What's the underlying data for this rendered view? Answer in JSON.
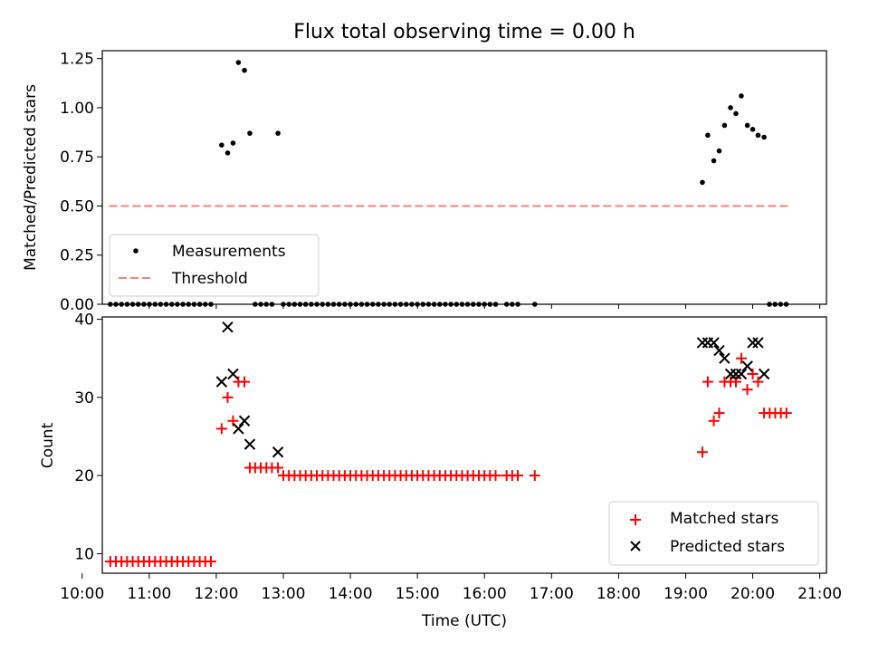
{
  "title": "Flux total observing time = 0.00 h",
  "colors": {
    "measurements": "#000000",
    "threshold": "#ff7f7f",
    "matched": "#ff0000",
    "predicted": "#000000"
  },
  "chart_data": [
    {
      "type": "scatter",
      "panel": "top",
      "ylabel": "Matched/Predicted stars",
      "xlim": [
        10.3,
        21.1
      ],
      "ylim": [
        0,
        1.29
      ],
      "y_ticks": [
        "0.00",
        "0.25",
        "0.50",
        "0.75",
        "1.00",
        "1.25"
      ],
      "legend": {
        "position": "bottom-left",
        "entries": [
          "Measurements",
          "Threshold"
        ]
      },
      "threshold": {
        "y": 0.5,
        "x_start": 10.4,
        "x_end": 20.58
      },
      "series": [
        {
          "name": "Measurements",
          "x": [
            12.08,
            12.17,
            12.25,
            12.33,
            12.42,
            12.5,
            12.92,
            19.25,
            19.33,
            19.42,
            19.5,
            19.58,
            19.67,
            19.75,
            19.83,
            19.92,
            20.0,
            20.08,
            20.17
          ],
          "y": [
            0.81,
            0.77,
            0.82,
            1.23,
            1.19,
            0.87,
            0.87,
            0.62,
            0.86,
            0.73,
            0.78,
            0.91,
            1.0,
            0.97,
            1.06,
            0.91,
            0.89,
            0.86,
            0.85
          ]
        },
        {
          "name": "Measurements (zero)",
          "x_ranges": [
            [
              10.42,
              12.0,
              0.0833
            ],
            [
              12.58,
              12.83,
              0.0833
            ],
            [
              13.0,
              16.17,
              0.0833
            ],
            [
              16.33,
              16.5,
              0.0833
            ],
            [
              16.75,
              16.75,
              0.0833
            ],
            [
              20.25,
              20.58,
              0.0833
            ]
          ],
          "y": 0
        }
      ]
    },
    {
      "type": "scatter",
      "panel": "bottom",
      "xlabel": "Time (UTC)",
      "ylabel": "Count",
      "xlim": [
        10.3,
        21.1
      ],
      "ylim": [
        7.5,
        40.3
      ],
      "x_ticks": [
        "10:00",
        "11:00",
        "12:00",
        "13:00",
        "14:00",
        "15:00",
        "16:00",
        "17:00",
        "18:00",
        "19:00",
        "20:00",
        "21:00"
      ],
      "y_ticks": [
        "10",
        "20",
        "30",
        "40"
      ],
      "legend": {
        "position": "bottom-right",
        "entries": [
          "Matched stars",
          "Predicted stars"
        ]
      },
      "series": [
        {
          "name": "Matched stars",
          "marker": "plus",
          "x": [
            12.08,
            12.17,
            12.25,
            12.33,
            12.42,
            12.5,
            12.92,
            19.25,
            19.33,
            19.42,
            19.5,
            19.58,
            19.67,
            19.75,
            19.83,
            19.92,
            20.0,
            20.08
          ],
          "y": [
            26,
            30,
            27,
            32,
            32,
            21,
            21,
            23,
            32,
            27,
            28,
            32,
            32,
            32,
            35,
            31,
            33,
            32
          ],
          "ranges": [
            {
              "from": 10.42,
              "to": 12.0,
              "step": 0.0833,
              "y": 9
            },
            {
              "from": 12.58,
              "to": 12.83,
              "step": 0.0833,
              "y": 21
            },
            {
              "from": 13.0,
              "to": 16.17,
              "step": 0.0833,
              "y": 20
            },
            {
              "from": 16.33,
              "to": 16.5,
              "step": 0.0833,
              "y": 20
            },
            {
              "from": 16.75,
              "to": 16.75,
              "step": 0.0833,
              "y": 20
            },
            {
              "from": 20.17,
              "to": 20.58,
              "step": 0.0833,
              "y": 28
            }
          ]
        },
        {
          "name": "Predicted stars",
          "marker": "x",
          "x": [
            12.08,
            12.17,
            12.25,
            12.33,
            12.42,
            12.5,
            12.92,
            19.25,
            19.33,
            19.42,
            19.5,
            19.58,
            19.67,
            19.75,
            19.83,
            19.92,
            20.0,
            20.08,
            20.17
          ],
          "y": [
            32,
            39,
            33,
            26,
            27,
            24,
            23,
            37,
            37,
            37,
            36,
            35,
            33,
            33,
            33,
            34,
            37,
            37,
            33
          ]
        }
      ]
    }
  ]
}
